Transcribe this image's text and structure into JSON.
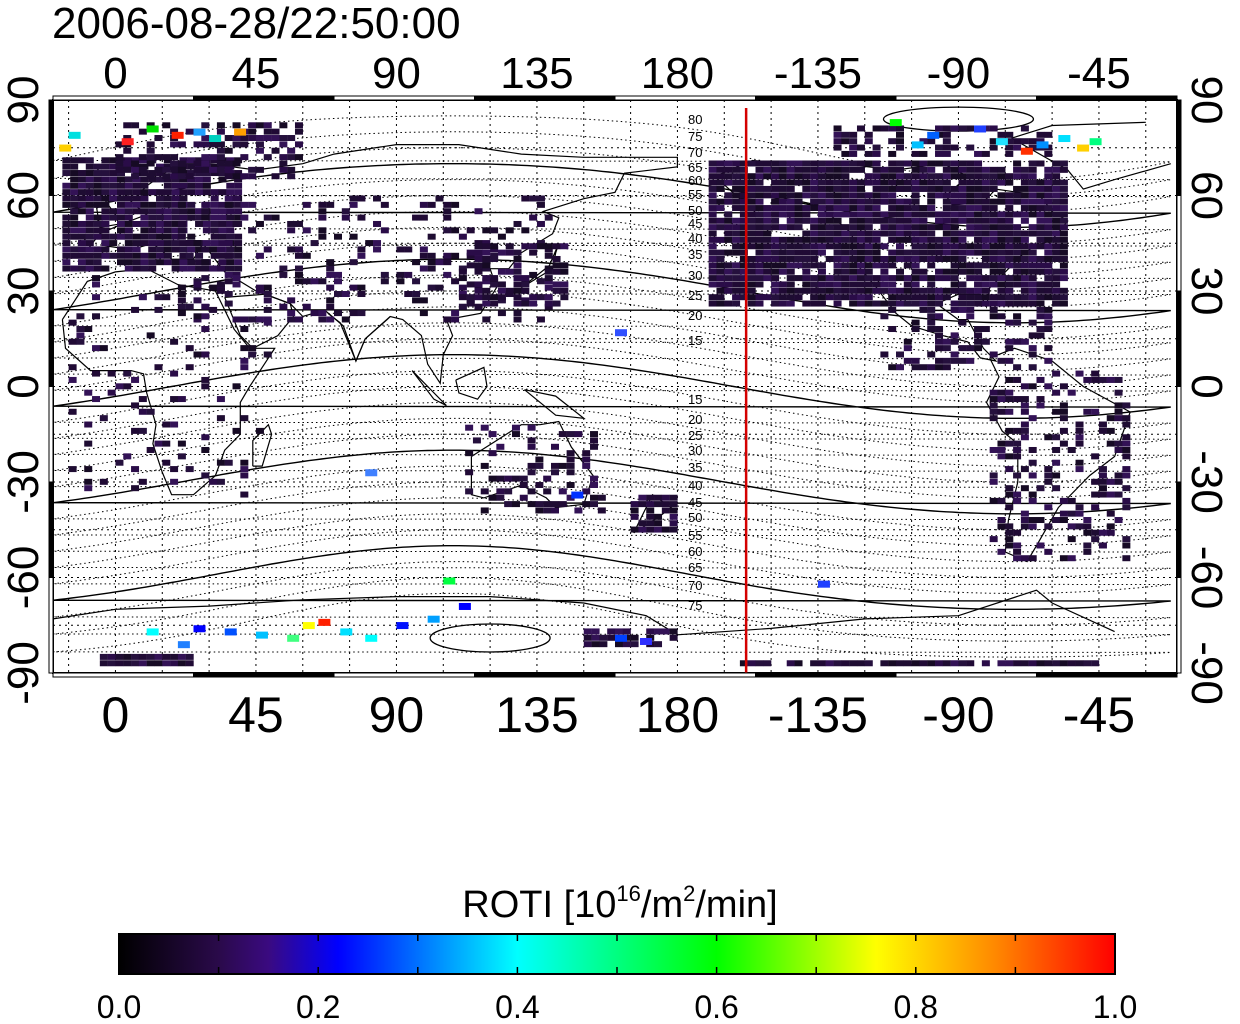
{
  "title": "2006-08-28/22:50:00",
  "map": {
    "top_ticks": [
      "0",
      "45",
      "90",
      "135",
      "180",
      "-135",
      "-90",
      "-45"
    ],
    "bottom_ticks": [
      "0",
      "45",
      "90",
      "135",
      "180",
      "-135",
      "-90",
      "-45"
    ],
    "left_ticks": [
      "90",
      "60",
      "30",
      "0",
      "-30",
      "-60",
      "-90"
    ],
    "right_ticks": [
      "90",
      "60",
      "30",
      "0",
      "-30",
      "-60",
      "-90"
    ],
    "contour_labels_north": [
      "80",
      "75",
      "70",
      "65",
      "60",
      "55",
      "50",
      "45",
      "40",
      "35",
      "30",
      "25",
      "20",
      "15"
    ],
    "contour_labels_south": [
      "15",
      "20",
      "25",
      "30",
      "35",
      "40",
      "45",
      "50",
      "55",
      "60",
      "65",
      "70",
      "75"
    ],
    "terminator_longitude": -158,
    "terminator_color": "#d40000"
  },
  "colorbar": {
    "title_main": "ROTI  [10",
    "title_sup1": "16",
    "title_mid": "/m",
    "title_sup2": "2",
    "title_end": "/min]",
    "min": 0.0,
    "max": 1.0,
    "tick_labels": [
      "0.0",
      "0.2",
      "0.4",
      "0.6",
      "0.8",
      "1.0"
    ]
  }
}
